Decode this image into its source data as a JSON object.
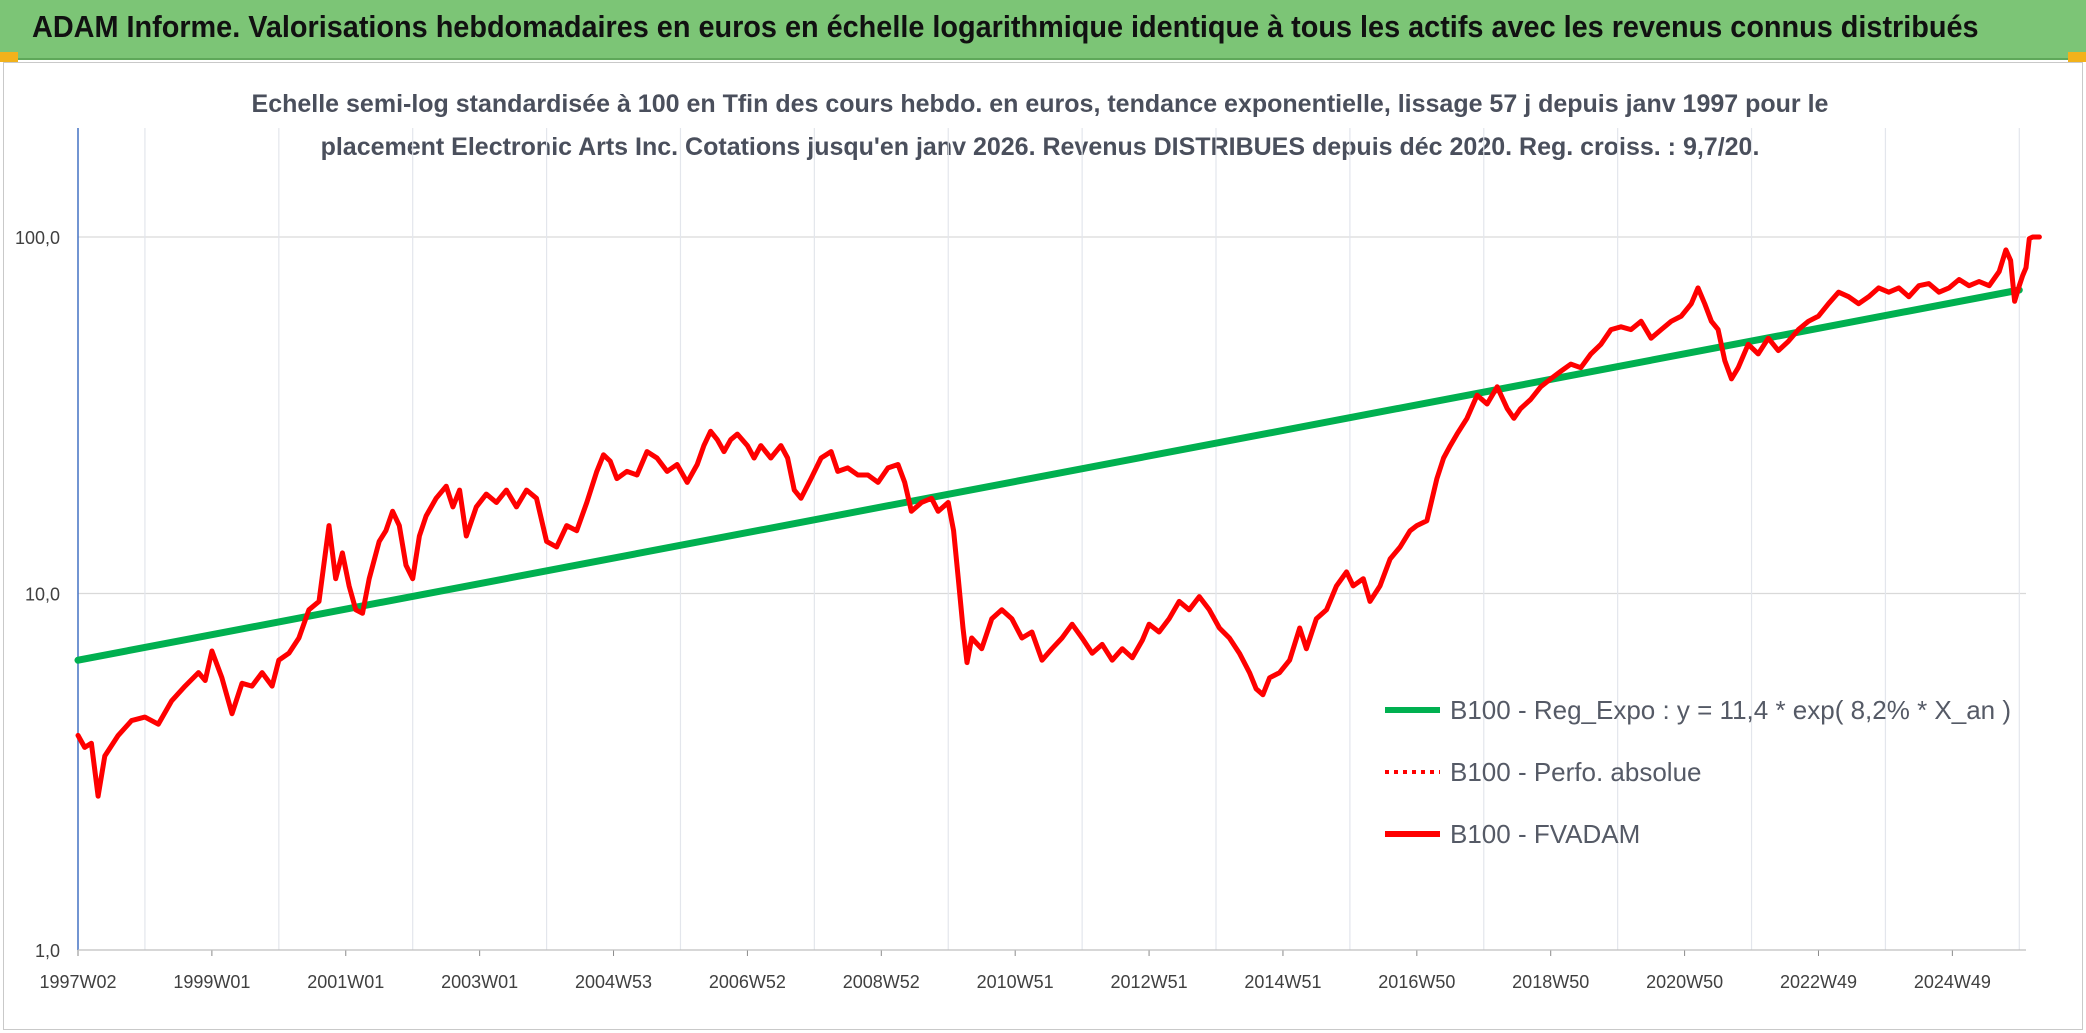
{
  "header": {
    "title": "ADAM Informe. Valorisations hebdomadaires en euros en échelle logarithmique identique à tous les actifs avec les revenus connus distribués"
  },
  "chart_data": {
    "type": "line",
    "title_lines": [
      "Echelle semi-log standardisée à 100 en Tfin des cours hebdo. en euros, tendance exponentielle, lissage 57 j depuis janv 1997 pour le",
      "placement Electronic Arts Inc. Cotations jusqu'en janv 2026. Revenus DISTRIBUES depuis déc 2020. Reg. croiss. : 9,7/20."
    ],
    "y_scale": "log",
    "ylim": [
      1,
      180
    ],
    "xlim": [
      1997.0,
      2026.1
    ],
    "y_ticks": [
      {
        "value": 1,
        "label": "1,0"
      },
      {
        "value": 10,
        "label": "10,0"
      },
      {
        "value": 100,
        "label": "100,0"
      }
    ],
    "x_ticks": [
      {
        "value": 1997.0,
        "label": "1997W02"
      },
      {
        "value": 1999.0,
        "label": "1999W01"
      },
      {
        "value": 2001.0,
        "label": "2001W01"
      },
      {
        "value": 2003.0,
        "label": "2003W01"
      },
      {
        "value": 2005.0,
        "label": "2004W53"
      },
      {
        "value": 2007.0,
        "label": "2006W52"
      },
      {
        "value": 2009.0,
        "label": "2008W52"
      },
      {
        "value": 2011.0,
        "label": "2010W51"
      },
      {
        "value": 2013.0,
        "label": "2012W51"
      },
      {
        "value": 2015.0,
        "label": "2014W51"
      },
      {
        "value": 2017.0,
        "label": "2016W50"
      },
      {
        "value": 2019.0,
        "label": "2018W50"
      },
      {
        "value": 2021.0,
        "label": "2020W50"
      },
      {
        "value": 2023.0,
        "label": "2022W49"
      },
      {
        "value": 2025.0,
        "label": "2024W49"
      }
    ],
    "legend_position": "right",
    "series": [
      {
        "name": "B100 - Reg_Expo : y = 11,4 * exp( 8,2% *  X_an )",
        "color": "#00b050",
        "style": "solid",
        "points": [
          [
            1997.0,
            6.5
          ],
          [
            2026.0,
            71
          ]
        ]
      },
      {
        "name": "B100 - Perfo. absolue",
        "color": "#ff0000",
        "style": "dotted",
        "points": []
      },
      {
        "name": "B100 - FVADAM",
        "color": "#ff0000",
        "style": "solid",
        "points": [
          [
            1997.0,
            4.0
          ],
          [
            1997.1,
            3.7
          ],
          [
            1997.2,
            3.8
          ],
          [
            1997.3,
            2.7
          ],
          [
            1997.4,
            3.5
          ],
          [
            1997.6,
            4.0
          ],
          [
            1997.8,
            4.4
          ],
          [
            1998.0,
            4.5
          ],
          [
            1998.2,
            4.3
          ],
          [
            1998.4,
            5.0
          ],
          [
            1998.6,
            5.5
          ],
          [
            1998.8,
            6.0
          ],
          [
            1998.9,
            5.7
          ],
          [
            1999.0,
            6.9
          ],
          [
            1999.15,
            5.8
          ],
          [
            1999.3,
            4.6
          ],
          [
            1999.45,
            5.6
          ],
          [
            1999.6,
            5.5
          ],
          [
            1999.75,
            6.0
          ],
          [
            1999.9,
            5.5
          ],
          [
            2000.0,
            6.5
          ],
          [
            2000.15,
            6.8
          ],
          [
            2000.3,
            7.5
          ],
          [
            2000.45,
            9.0
          ],
          [
            2000.6,
            9.5
          ],
          [
            2000.75,
            15.5
          ],
          [
            2000.85,
            11.0
          ],
          [
            2000.95,
            13.0
          ],
          [
            2001.05,
            10.5
          ],
          [
            2001.15,
            9.0
          ],
          [
            2001.25,
            8.8
          ],
          [
            2001.35,
            11.0
          ],
          [
            2001.5,
            14.0
          ],
          [
            2001.6,
            15.0
          ],
          [
            2001.7,
            17.0
          ],
          [
            2001.8,
            15.5
          ],
          [
            2001.9,
            12.0
          ],
          [
            2002.0,
            11.0
          ],
          [
            2002.1,
            14.5
          ],
          [
            2002.2,
            16.5
          ],
          [
            2002.35,
            18.5
          ],
          [
            2002.5,
            20.0
          ],
          [
            2002.6,
            17.5
          ],
          [
            2002.7,
            19.5
          ],
          [
            2002.8,
            14.5
          ],
          [
            2002.95,
            17.5
          ],
          [
            2003.1,
            19.0
          ],
          [
            2003.25,
            18.0
          ],
          [
            2003.4,
            19.5
          ],
          [
            2003.55,
            17.5
          ],
          [
            2003.7,
            19.5
          ],
          [
            2003.85,
            18.5
          ],
          [
            2004.0,
            14.0
          ],
          [
            2004.15,
            13.5
          ],
          [
            2004.3,
            15.5
          ],
          [
            2004.45,
            15.0
          ],
          [
            2004.6,
            18.0
          ],
          [
            2004.75,
            22.0
          ],
          [
            2004.85,
            24.5
          ],
          [
            2004.95,
            23.5
          ],
          [
            2005.05,
            21.0
          ],
          [
            2005.2,
            22.0
          ],
          [
            2005.35,
            21.5
          ],
          [
            2005.5,
            25.0
          ],
          [
            2005.65,
            24.0
          ],
          [
            2005.8,
            22.0
          ],
          [
            2005.95,
            23.0
          ],
          [
            2006.1,
            20.5
          ],
          [
            2006.25,
            23.0
          ],
          [
            2006.35,
            26.0
          ],
          [
            2006.45,
            28.5
          ],
          [
            2006.55,
            27.0
          ],
          [
            2006.65,
            25.0
          ],
          [
            2006.75,
            27.0
          ],
          [
            2006.85,
            28.0
          ],
          [
            2007.0,
            26.0
          ],
          [
            2007.1,
            24.0
          ],
          [
            2007.2,
            26.0
          ],
          [
            2007.35,
            24.0
          ],
          [
            2007.5,
            26.0
          ],
          [
            2007.6,
            24.0
          ],
          [
            2007.7,
            19.5
          ],
          [
            2007.8,
            18.5
          ],
          [
            2007.95,
            21.0
          ],
          [
            2008.1,
            24.0
          ],
          [
            2008.25,
            25.0
          ],
          [
            2008.35,
            22.0
          ],
          [
            2008.5,
            22.5
          ],
          [
            2008.65,
            21.5
          ],
          [
            2008.8,
            21.5
          ],
          [
            2008.95,
            20.5
          ],
          [
            2009.1,
            22.5
          ],
          [
            2009.25,
            23.0
          ],
          [
            2009.35,
            20.5
          ],
          [
            2009.45,
            17.0
          ],
          [
            2009.6,
            18.0
          ],
          [
            2009.75,
            18.5
          ],
          [
            2009.85,
            17.0
          ],
          [
            2010.0,
            18.0
          ],
          [
            2010.08,
            15.0
          ],
          [
            2010.15,
            11.0
          ],
          [
            2010.22,
            8.0
          ],
          [
            2010.28,
            6.4
          ],
          [
            2010.35,
            7.5
          ],
          [
            2010.5,
            7.0
          ],
          [
            2010.65,
            8.5
          ],
          [
            2010.8,
            9.0
          ],
          [
            2010.95,
            8.5
          ],
          [
            2011.1,
            7.5
          ],
          [
            2011.25,
            7.8
          ],
          [
            2011.4,
            6.5
          ],
          [
            2011.55,
            7.0
          ],
          [
            2011.7,
            7.5
          ],
          [
            2011.85,
            8.2
          ],
          [
            2012.0,
            7.5
          ],
          [
            2012.15,
            6.8
          ],
          [
            2012.3,
            7.2
          ],
          [
            2012.45,
            6.5
          ],
          [
            2012.6,
            7.0
          ],
          [
            2012.75,
            6.6
          ],
          [
            2012.9,
            7.4
          ],
          [
            2013.0,
            8.2
          ],
          [
            2013.15,
            7.8
          ],
          [
            2013.3,
            8.5
          ],
          [
            2013.45,
            9.5
          ],
          [
            2013.6,
            9.0
          ],
          [
            2013.75,
            9.8
          ],
          [
            2013.9,
            9.0
          ],
          [
            2014.05,
            8.0
          ],
          [
            2014.2,
            7.5
          ],
          [
            2014.35,
            6.8
          ],
          [
            2014.5,
            6.0
          ],
          [
            2014.6,
            5.4
          ],
          [
            2014.7,
            5.2
          ],
          [
            2014.8,
            5.8
          ],
          [
            2014.95,
            6.0
          ],
          [
            2015.1,
            6.5
          ],
          [
            2015.25,
            8.0
          ],
          [
            2015.35,
            7.0
          ],
          [
            2015.5,
            8.5
          ],
          [
            2015.65,
            9.0
          ],
          [
            2015.8,
            10.5
          ],
          [
            2015.95,
            11.5
          ],
          [
            2016.05,
            10.5
          ],
          [
            2016.2,
            11.0
          ],
          [
            2016.3,
            9.5
          ],
          [
            2016.45,
            10.5
          ],
          [
            2016.6,
            12.5
          ],
          [
            2016.75,
            13.5
          ],
          [
            2016.9,
            15.0
          ],
          [
            2017.0,
            15.5
          ],
          [
            2017.15,
            16.0
          ],
          [
            2017.3,
            21.0
          ],
          [
            2017.4,
            24.0
          ],
          [
            2017.5,
            26.0
          ],
          [
            2017.6,
            28.0
          ],
          [
            2017.75,
            31.0
          ],
          [
            2017.9,
            36.0
          ],
          [
            2018.05,
            34.0
          ],
          [
            2018.2,
            38.0
          ],
          [
            2018.35,
            33.0
          ],
          [
            2018.45,
            31.0
          ],
          [
            2018.55,
            33.0
          ],
          [
            2018.7,
            35.0
          ],
          [
            2018.85,
            38.0
          ],
          [
            2019.0,
            40.0
          ],
          [
            2019.15,
            42.0
          ],
          [
            2019.3,
            44.0
          ],
          [
            2019.45,
            43.0
          ],
          [
            2019.6,
            47.0
          ],
          [
            2019.75,
            50.0
          ],
          [
            2019.9,
            55.0
          ],
          [
            2020.05,
            56.0
          ],
          [
            2020.2,
            55.0
          ],
          [
            2020.35,
            58.0
          ],
          [
            2020.5,
            52.0
          ],
          [
            2020.65,
            55.0
          ],
          [
            2020.8,
            58.0
          ],
          [
            2020.95,
            60.0
          ],
          [
            2021.1,
            65.0
          ],
          [
            2021.2,
            72.0
          ],
          [
            2021.3,
            65.0
          ],
          [
            2021.4,
            58.0
          ],
          [
            2021.5,
            55.0
          ],
          [
            2021.6,
            45.0
          ],
          [
            2021.7,
            40.0
          ],
          [
            2021.8,
            43.0
          ],
          [
            2021.95,
            50.0
          ],
          [
            2022.1,
            47.0
          ],
          [
            2022.25,
            52.0
          ],
          [
            2022.4,
            48.0
          ],
          [
            2022.55,
            51.0
          ],
          [
            2022.7,
            55.0
          ],
          [
            2022.85,
            58.0
          ],
          [
            2023.0,
            60.0
          ],
          [
            2023.15,
            65.0
          ],
          [
            2023.3,
            70.0
          ],
          [
            2023.45,
            68.0
          ],
          [
            2023.6,
            65.0
          ],
          [
            2023.75,
            68.0
          ],
          [
            2023.9,
            72.0
          ],
          [
            2024.05,
            70.0
          ],
          [
            2024.2,
            72.0
          ],
          [
            2024.35,
            68.0
          ],
          [
            2024.5,
            73.0
          ],
          [
            2024.65,
            74.0
          ],
          [
            2024.8,
            70.0
          ],
          [
            2024.95,
            72.0
          ],
          [
            2025.1,
            76.0
          ],
          [
            2025.25,
            73.0
          ],
          [
            2025.4,
            75.0
          ],
          [
            2025.55,
            73.0
          ],
          [
            2025.7,
            80.0
          ],
          [
            2025.8,
            92.0
          ],
          [
            2025.87,
            86.0
          ],
          [
            2025.93,
            66.0
          ],
          [
            2026.0,
            73.0
          ],
          [
            2026.05,
            78.0
          ],
          [
            2026.1,
            82.0
          ],
          [
            2026.15,
            99.0
          ],
          [
            2026.2,
            100.0
          ],
          [
            2026.3,
            100.0
          ]
        ]
      }
    ]
  }
}
